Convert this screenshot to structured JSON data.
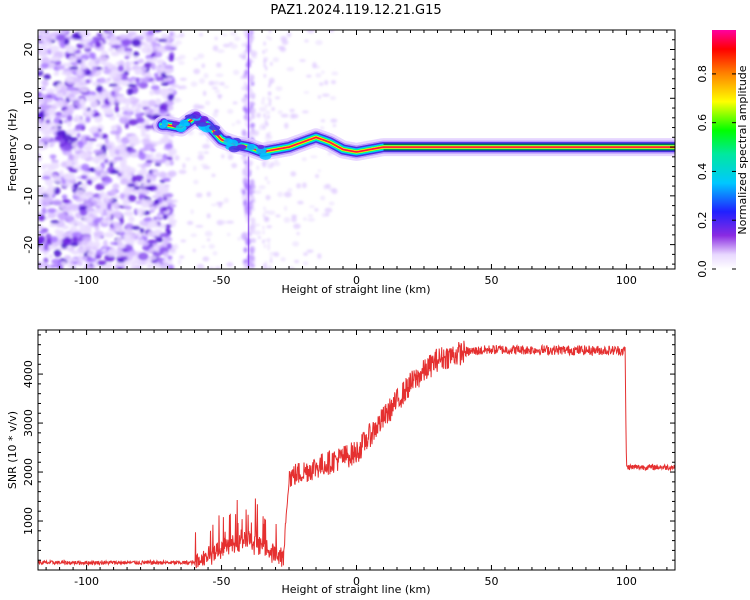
{
  "title": "PAZ1.2024.119.12.21.G15",
  "chart_data": [
    {
      "type": "heatmap",
      "xlabel": "Height of straight line (km)",
      "ylabel": "Frequency (Hz)",
      "xlim": [
        -118,
        118
      ],
      "ylim": [
        -25,
        24
      ],
      "xticks": [
        -100,
        -50,
        0,
        50,
        100
      ],
      "yticks": [
        -20,
        -10,
        0,
        10,
        20
      ],
      "colorbar_label": "Normalized spectral amplitude",
      "colorbar_ticks": [
        "0.0",
        "0.2",
        "0.4",
        "0.6",
        "0.8"
      ],
      "ridge": [
        {
          "x": -70,
          "y": 4.5
        },
        {
          "x": -65,
          "y": 4
        },
        {
          "x": -60,
          "y": 6
        },
        {
          "x": -55,
          "y": 4.5
        },
        {
          "x": -50,
          "y": 1.5
        },
        {
          "x": -45,
          "y": 0.5
        },
        {
          "x": -40,
          "y": 0
        },
        {
          "x": -35,
          "y": -1
        },
        {
          "x": -30,
          "y": -0.5
        },
        {
          "x": -25,
          "y": 0
        },
        {
          "x": -20,
          "y": 1
        },
        {
          "x": -15,
          "y": 2
        },
        {
          "x": -10,
          "y": 1
        },
        {
          "x": -5,
          "y": -0.5
        },
        {
          "x": 0,
          "y": -1
        },
        {
          "x": 5,
          "y": -0.5
        },
        {
          "x": 10,
          "y": 0
        },
        {
          "x": 118,
          "y": 0
        }
      ]
    },
    {
      "type": "line",
      "xlabel": "Height of straight line (km)",
      "ylabel": "SNR (10 * v/v)",
      "xlim": [
        -118,
        118
      ],
      "ylim": [
        0,
        4900
      ],
      "xticks": [
        -100,
        -50,
        0,
        50,
        100
      ],
      "yticks": [
        1000,
        2000,
        3000,
        4000
      ],
      "line_color": "#e53030",
      "profile": [
        {
          "x": -118,
          "y": 150
        },
        {
          "x": -60,
          "y": 150
        },
        {
          "x": -50,
          "y": 450
        },
        {
          "x": -40,
          "y": 600
        },
        {
          "x": -27,
          "y": 250
        },
        {
          "x": -25,
          "y": 1900
        },
        {
          "x": -20,
          "y": 2000
        },
        {
          "x": -10,
          "y": 2200
        },
        {
          "x": 0,
          "y": 2400
        },
        {
          "x": 10,
          "y": 3100
        },
        {
          "x": 20,
          "y": 3800
        },
        {
          "x": 30,
          "y": 4300
        },
        {
          "x": 40,
          "y": 4450
        },
        {
          "x": 50,
          "y": 4500
        },
        {
          "x": 99.5,
          "y": 4480
        },
        {
          "x": 100,
          "y": 2100
        },
        {
          "x": 118,
          "y": 2100
        }
      ]
    }
  ]
}
